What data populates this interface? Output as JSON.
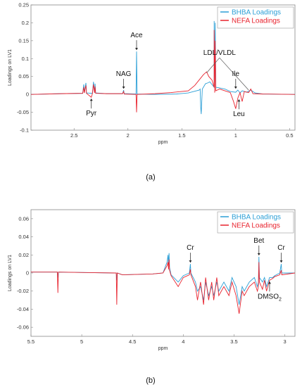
{
  "chart_data": [
    {
      "type": "line",
      "panel_label": "(a)",
      "xlabel": "ppm",
      "ylabel": "Loadings on LV1",
      "xlim": [
        2.9,
        0.45
      ],
      "ylim": [
        -0.1,
        0.25
      ],
      "x_reversed": true,
      "xticks": [
        "2.5",
        "2",
        "1.5",
        "1",
        "0.5"
      ],
      "xtick_values": [
        2.5,
        2.0,
        1.5,
        1.0,
        0.5
      ],
      "yticks": [
        "-0.1",
        "-0.05",
        "0",
        "0.05",
        "0.1",
        "0.15",
        "0.2",
        "0.25"
      ],
      "ytick_values": [
        -0.1,
        -0.05,
        0,
        0.05,
        0.1,
        0.15,
        0.2,
        0.25
      ],
      "legend_position": "top-right",
      "series": [
        {
          "name": "BHBA Loadings",
          "color": "#2c9fd6",
          "points": [
            [
              2.9,
              0
            ],
            [
              2.62,
              0.002
            ],
            [
              2.42,
              0.003
            ],
            [
              2.41,
              0.028
            ],
            [
              2.405,
              0.005
            ],
            [
              2.39,
              0.032
            ],
            [
              2.385,
              0.004
            ],
            [
              2.33,
              0.003
            ],
            [
              2.32,
              0.035
            ],
            [
              2.31,
              0.006
            ],
            [
              2.305,
              0.03
            ],
            [
              2.3,
              0.004
            ],
            [
              2.2,
              0.002
            ],
            [
              2.05,
              0.002
            ],
            [
              2.04,
              0.012
            ],
            [
              2.035,
              0.002
            ],
            [
              1.925,
              0.001
            ],
            [
              1.92,
              0.12
            ],
            [
              1.915,
              0.001
            ],
            [
              1.75,
              0
            ],
            [
              1.55,
              0.001
            ],
            [
              1.44,
              0.004
            ],
            [
              1.34,
              0.012
            ],
            [
              1.33,
              0.015
            ],
            [
              1.325,
              -0.035
            ],
            [
              1.32,
              -0.055
            ],
            [
              1.31,
              0.015
            ],
            [
              1.3,
              0.02
            ],
            [
              1.28,
              0.03
            ],
            [
              1.26,
              0.032
            ],
            [
              1.24,
              0.035
            ],
            [
              1.2,
              0.02
            ],
            [
              1.2,
              0.205
            ],
            [
              1.195,
              0.01
            ],
            [
              1.19,
              0.2
            ],
            [
              1.185,
              0.02
            ],
            [
              1.15,
              0.018
            ],
            [
              1.1,
              0.015
            ],
            [
              1.05,
              0.008
            ],
            [
              1.0,
              0.006
            ],
            [
              0.98,
              0.012
            ],
            [
              0.96,
              0.004
            ],
            [
              0.94,
              0.01
            ],
            [
              0.9,
              0.006
            ],
            [
              0.86,
              0.012
            ],
            [
              0.82,
              0.004
            ],
            [
              0.75,
              0.001
            ],
            [
              0.45,
              0
            ]
          ]
        },
        {
          "name": "NEFA Loadings",
          "color": "#e8232e",
          "points": [
            [
              2.9,
              0
            ],
            [
              2.62,
              0.002
            ],
            [
              2.42,
              0.003
            ],
            [
              2.41,
              0.02
            ],
            [
              2.405,
              0.004
            ],
            [
              2.39,
              0.025
            ],
            [
              2.385,
              0.003
            ],
            [
              2.34,
              -0.008
            ],
            [
              2.33,
              0.002
            ],
            [
              2.32,
              0.028
            ],
            [
              2.31,
              0.004
            ],
            [
              2.305,
              0.022
            ],
            [
              2.3,
              0.003
            ],
            [
              2.2,
              0.002
            ],
            [
              2.05,
              0.002
            ],
            [
              2.04,
              0.008
            ],
            [
              2.035,
              0.001
            ],
            [
              1.925,
              0
            ],
            [
              1.92,
              -0.05
            ],
            [
              1.915,
              0
            ],
            [
              1.75,
              0.002
            ],
            [
              1.6,
              0.005
            ],
            [
              1.44,
              0.01
            ],
            [
              1.38,
              0.025
            ],
            [
              1.34,
              0.04
            ],
            [
              1.3,
              0.055
            ],
            [
              1.27,
              0.063
            ],
            [
              1.25,
              0.05
            ],
            [
              1.22,
              0.04
            ],
            [
              1.2,
              0.02
            ],
            [
              1.2,
              0.18
            ],
            [
              1.195,
              0.005
            ],
            [
              1.19,
              0.15
            ],
            [
              1.185,
              0.01
            ],
            [
              1.15,
              0.015
            ],
            [
              1.1,
              0.01
            ],
            [
              1.05,
              0.005
            ],
            [
              1.02,
              -0.02
            ],
            [
              1.0,
              -0.04
            ],
            [
              0.98,
              -0.01
            ],
            [
              0.96,
              0.005
            ],
            [
              0.94,
              -0.02
            ],
            [
              0.92,
              0.008
            ],
            [
              0.88,
              0.005
            ],
            [
              0.86,
              0.015
            ],
            [
              0.84,
              0.002
            ],
            [
              0.75,
              0.001
            ],
            [
              0.45,
              0
            ]
          ]
        }
      ],
      "annotations": [
        {
          "text": "Ace",
          "x": 1.92,
          "y": 0.12,
          "dir": "down"
        },
        {
          "text": "NAG",
          "x": 2.04,
          "y": 0.012,
          "dir": "down"
        },
        {
          "text": "LDL/VLDL",
          "x": 1.15,
          "y": 0.11,
          "targets": [
            [
              1.27,
              0.06
            ],
            [
              0.88,
              0.012
            ]
          ]
        },
        {
          "text": "Ile",
          "x": 1.0,
          "y": 0.012,
          "dir": "down"
        },
        {
          "text": "Pyr",
          "x": 2.34,
          "y": -0.008,
          "dir": "up"
        },
        {
          "text": "Leu",
          "x": 0.97,
          "y": -0.01,
          "dir": "up"
        }
      ]
    },
    {
      "type": "line",
      "panel_label": "(b)",
      "xlabel": "ppm",
      "ylabel": "Loadings on LV1",
      "xlim": [
        5.5,
        2.9
      ],
      "ylim": [
        -0.07,
        0.07
      ],
      "x_reversed": true,
      "xticks": [
        "5.5",
        "5",
        "4.5",
        "4",
        "3.5",
        "3"
      ],
      "xtick_values": [
        5.5,
        5.0,
        4.5,
        4.0,
        3.5,
        3.0
      ],
      "yticks": [
        "-0.06",
        "-0.04",
        "-0.02",
        "0",
        "0.02",
        "0.04",
        "0.06"
      ],
      "ytick_values": [
        -0.06,
        -0.04,
        -0.02,
        0,
        0.02,
        0.04,
        0.06
      ],
      "legend_position": "top-right",
      "series": [
        {
          "name": "BHBA Loadings",
          "color": "#2c9fd6",
          "points": [
            [
              5.5,
              0.001
            ],
            [
              5.35,
              0.001
            ],
            [
              5.24,
              0.001
            ],
            [
              5.235,
              -0.005
            ],
            [
              5.23,
              0.001
            ],
            [
              4.66,
              0
            ],
            [
              4.655,
              -0.008
            ],
            [
              4.65,
              0
            ],
            [
              4.6,
              -0.002
            ],
            [
              4.3,
              -0.001
            ],
            [
              4.2,
              0
            ],
            [
              4.16,
              0.012
            ],
            [
              4.15,
              0.02
            ],
            [
              4.145,
              0.008
            ],
            [
              4.14,
              0.022
            ],
            [
              4.135,
              0.006
            ],
            [
              4.12,
              -0.002
            ],
            [
              4.05,
              -0.01
            ],
            [
              4.0,
              -0.003
            ],
            [
              3.94,
              0
            ],
            [
              3.93,
              0.01
            ],
            [
              3.925,
              0
            ],
            [
              3.88,
              -0.01
            ],
            [
              3.86,
              -0.02
            ],
            [
              3.83,
              -0.015
            ],
            [
              3.8,
              -0.03
            ],
            [
              3.78,
              -0.01
            ],
            [
              3.75,
              -0.025
            ],
            [
              3.72,
              -0.015
            ],
            [
              3.7,
              -0.025
            ],
            [
              3.67,
              -0.01
            ],
            [
              3.65,
              -0.02
            ],
            [
              3.6,
              -0.01
            ],
            [
              3.55,
              -0.02
            ],
            [
              3.52,
              -0.005
            ],
            [
              3.48,
              -0.015
            ],
            [
              3.45,
              -0.035
            ],
            [
              3.42,
              -0.015
            ],
            [
              3.4,
              -0.02
            ],
            [
              3.35,
              -0.01
            ],
            [
              3.3,
              -0.005
            ],
            [
              3.27,
              -0.015
            ],
            [
              3.26,
              -0.01
            ],
            [
              3.255,
              0.018
            ],
            [
              3.25,
              -0.005
            ],
            [
              3.22,
              -0.01
            ],
            [
              3.2,
              -0.005
            ],
            [
              3.18,
              -0.015
            ],
            [
              3.15,
              -0.005
            ],
            [
              3.12,
              -0.005
            ],
            [
              3.1,
              -0.003
            ],
            [
              3.05,
              0
            ],
            [
              3.035,
              0.01
            ],
            [
              3.03,
              0
            ],
            [
              2.9,
              0
            ]
          ]
        },
        {
          "name": "NEFA Loadings",
          "color": "#e8232e",
          "points": [
            [
              5.5,
              0.001
            ],
            [
              5.35,
              0.001
            ],
            [
              5.24,
              0.001
            ],
            [
              5.235,
              -0.022
            ],
            [
              5.23,
              0.001
            ],
            [
              4.66,
              0
            ],
            [
              4.655,
              -0.035
            ],
            [
              4.65,
              0
            ],
            [
              4.6,
              -0.002
            ],
            [
              4.3,
              -0.001
            ],
            [
              4.2,
              0
            ],
            [
              4.16,
              0.008
            ],
            [
              4.15,
              0.012
            ],
            [
              4.145,
              0.004
            ],
            [
              4.14,
              0.015
            ],
            [
              4.135,
              0.003
            ],
            [
              4.12,
              -0.003
            ],
            [
              4.05,
              -0.015
            ],
            [
              4.0,
              -0.005
            ],
            [
              3.94,
              -0.002
            ],
            [
              3.93,
              0.004
            ],
            [
              3.925,
              -0.002
            ],
            [
              3.88,
              -0.015
            ],
            [
              3.86,
              -0.03
            ],
            [
              3.83,
              -0.01
            ],
            [
              3.8,
              -0.035
            ],
            [
              3.78,
              -0.005
            ],
            [
              3.75,
              -0.03
            ],
            [
              3.72,
              -0.01
            ],
            [
              3.7,
              -0.03
            ],
            [
              3.67,
              -0.005
            ],
            [
              3.65,
              -0.025
            ],
            [
              3.6,
              -0.015
            ],
            [
              3.55,
              -0.025
            ],
            [
              3.52,
              -0.01
            ],
            [
              3.48,
              -0.025
            ],
            [
              3.45,
              -0.045
            ],
            [
              3.42,
              -0.02
            ],
            [
              3.4,
              -0.025
            ],
            [
              3.35,
              -0.015
            ],
            [
              3.3,
              -0.01
            ],
            [
              3.27,
              -0.02
            ],
            [
              3.26,
              -0.015
            ],
            [
              3.255,
              0.012
            ],
            [
              3.25,
              -0.01
            ],
            [
              3.22,
              -0.018
            ],
            [
              3.2,
              -0.008
            ],
            [
              3.18,
              -0.02
            ],
            [
              3.15,
              -0.008
            ],
            [
              3.12,
              -0.006
            ],
            [
              3.1,
              -0.004
            ],
            [
              3.05,
              -0.002
            ],
            [
              3.035,
              0.003
            ],
            [
              3.03,
              -0.002
            ],
            [
              2.9,
              0
            ]
          ]
        }
      ],
      "annotations": [
        {
          "text": "Cr",
          "x": 3.93,
          "y": 0.01,
          "dir": "down"
        },
        {
          "text": "Bet",
          "x": 3.255,
          "y": 0.018,
          "dir": "down"
        },
        {
          "text": "Cr",
          "x": 3.035,
          "y": 0.01,
          "dir": "down"
        },
        {
          "text": "DMSO",
          "sub": "2",
          "x": 3.15,
          "y": -0.008,
          "dir": "up"
        }
      ]
    }
  ]
}
